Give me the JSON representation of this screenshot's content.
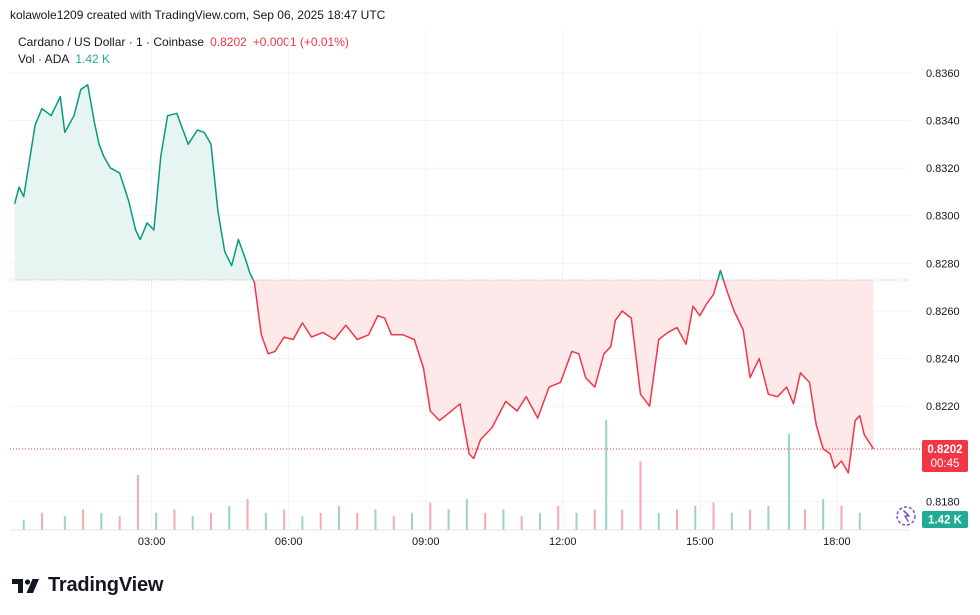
{
  "header": {
    "credit": "kolawole1209 created with TradingView.com, Sep 06, 2025 18:47 UTC",
    "symbol": "Cardano / US Dollar · 1 · Coinbase",
    "price": "0.8202",
    "change": "+0.0001 (+0.01%)",
    "volume_label": "Vol · ADA",
    "volume_value": "1.42 K"
  },
  "price_badge": {
    "price": "0.8202",
    "countdown": "00:45"
  },
  "volume_badge": {
    "value": "1.42 K"
  },
  "logo": {
    "text": "TradingView"
  },
  "colors": {
    "up": "#089981",
    "down": "#f23645",
    "up_fill": "#e6f5f1",
    "down_fill": "#fde8ea"
  },
  "chart_data": {
    "type": "area",
    "y_axis_ticks": [
      "0.8360",
      "0.8340",
      "0.8320",
      "0.8300",
      "0.8280",
      "0.8260",
      "0.8240",
      "0.8220",
      "0.8180"
    ],
    "x_axis_ticks": [
      "03:00",
      "06:00",
      "09:00",
      "12:00",
      "15:00",
      "18:00"
    ],
    "x_tick_hours": [
      3,
      6,
      9,
      12,
      15,
      18
    ],
    "ylim": [
      0.8168,
      0.8378
    ],
    "xlim_hours": [
      -0.1,
      19.6
    ],
    "baseline": 0.8273,
    "last_price": 0.8202,
    "price_series": {
      "x_hours": [
        0.0,
        0.1,
        0.2,
        0.3,
        0.45,
        0.6,
        0.8,
        1.0,
        1.1,
        1.3,
        1.45,
        1.6,
        1.75,
        1.85,
        1.95,
        2.1,
        2.3,
        2.5,
        2.65,
        2.75,
        2.9,
        3.05,
        3.2,
        3.35,
        3.55,
        3.8,
        4.0,
        4.15,
        4.3,
        4.45,
        4.6,
        4.75,
        4.9,
        5.05,
        5.15,
        5.25,
        5.4,
        5.55,
        5.7,
        5.9,
        6.1,
        6.3,
        6.5,
        6.75,
        7.0,
        7.25,
        7.5,
        7.75,
        7.95,
        8.1,
        8.25,
        8.5,
        8.75,
        8.95,
        9.1,
        9.3,
        9.5,
        9.75,
        9.95,
        10.05,
        10.2,
        10.45,
        10.75,
        11.0,
        11.2,
        11.45,
        11.7,
        11.95,
        12.2,
        12.35,
        12.5,
        12.7,
        12.9,
        13.05,
        13.15,
        13.3,
        13.5,
        13.7,
        13.9,
        14.1,
        14.3,
        14.5,
        14.7,
        14.85,
        15.0,
        15.15,
        15.3,
        15.45,
        15.6,
        15.75,
        15.95,
        16.1,
        16.3,
        16.5,
        16.7,
        16.9,
        17.05,
        17.2,
        17.4,
        17.55,
        17.7,
        17.85,
        17.95,
        18.1,
        18.25,
        18.4,
        18.5,
        18.6,
        18.8
      ],
      "y": [
        0.8305,
        0.8312,
        0.8308,
        0.832,
        0.8338,
        0.8345,
        0.8342,
        0.835,
        0.8335,
        0.8342,
        0.8353,
        0.8355,
        0.8339,
        0.833,
        0.8325,
        0.832,
        0.8318,
        0.8306,
        0.8294,
        0.829,
        0.8297,
        0.8294,
        0.8325,
        0.8342,
        0.8343,
        0.833,
        0.8336,
        0.8335,
        0.833,
        0.8302,
        0.8285,
        0.8279,
        0.829,
        0.8282,
        0.8276,
        0.8272,
        0.825,
        0.8242,
        0.8243,
        0.8249,
        0.8248,
        0.8255,
        0.8249,
        0.8251,
        0.8248,
        0.8254,
        0.8248,
        0.825,
        0.8258,
        0.8257,
        0.825,
        0.825,
        0.8248,
        0.8236,
        0.8218,
        0.8214,
        0.8217,
        0.8221,
        0.82,
        0.8198,
        0.8206,
        0.8211,
        0.8222,
        0.8218,
        0.8224,
        0.8215,
        0.8228,
        0.823,
        0.8243,
        0.8242,
        0.8232,
        0.8228,
        0.8242,
        0.8245,
        0.8256,
        0.826,
        0.8257,
        0.8225,
        0.822,
        0.8248,
        0.8251,
        0.8253,
        0.8246,
        0.8262,
        0.8258,
        0.8263,
        0.8267,
        0.8277,
        0.8268,
        0.826,
        0.8252,
        0.8232,
        0.824,
        0.8225,
        0.8224,
        0.8228,
        0.8221,
        0.8234,
        0.823,
        0.8212,
        0.8202,
        0.82,
        0.8194,
        0.8197,
        0.8192,
        0.8214,
        0.8216,
        0.8208,
        0.8202
      ]
    },
    "volume_series": {
      "x_hours": [
        0.2,
        0.6,
        1.1,
        1.5,
        1.9,
        2.3,
        2.7,
        3.1,
        3.5,
        3.9,
        4.3,
        4.7,
        5.1,
        5.5,
        5.9,
        6.3,
        6.7,
        7.1,
        7.5,
        7.9,
        8.3,
        8.7,
        9.1,
        9.5,
        9.9,
        10.3,
        10.7,
        11.1,
        11.5,
        11.9,
        12.3,
        12.7,
        12.95,
        13.3,
        13.7,
        14.1,
        14.5,
        14.9,
        15.3,
        15.7,
        16.1,
        16.5,
        16.95,
        17.3,
        17.7,
        18.1,
        18.5
      ],
      "values": [
        0.3,
        0.5,
        0.4,
        0.6,
        0.5,
        0.4,
        1.6,
        0.5,
        0.6,
        0.4,
        0.5,
        0.7,
        0.9,
        0.5,
        0.6,
        0.4,
        0.5,
        0.7,
        0.5,
        0.6,
        0.4,
        0.5,
        0.8,
        0.6,
        0.9,
        0.5,
        0.6,
        0.4,
        0.5,
        0.7,
        0.5,
        0.6,
        3.2,
        0.6,
        2.0,
        0.5,
        0.6,
        0.7,
        0.8,
        0.5,
        0.6,
        0.7,
        2.8,
        0.6,
        0.9,
        0.7,
        0.5
      ],
      "up": [
        true,
        false,
        true,
        false,
        true,
        false,
        false,
        true,
        false,
        true,
        false,
        true,
        false,
        true,
        false,
        true,
        false,
        true,
        false,
        true,
        false,
        true,
        false,
        true,
        true,
        false,
        true,
        false,
        true,
        false,
        true,
        false,
        true,
        false,
        false,
        true,
        false,
        true,
        false,
        true,
        false,
        true,
        true,
        false,
        true,
        false,
        true
      ]
    }
  }
}
